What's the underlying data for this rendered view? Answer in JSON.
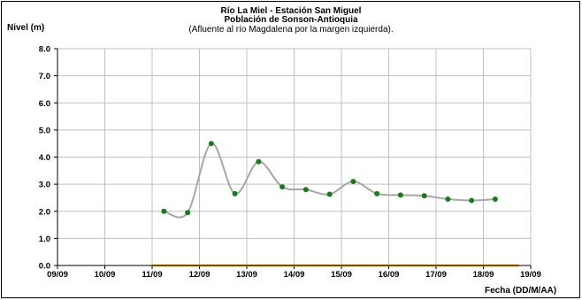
{
  "chart_data": {
    "type": "line",
    "title": "Río La Miel  - Estación San Miguel",
    "subtitle": "Población de Sonson-Antioquia",
    "note": "(Afluente al río Magdalena por la margen izquierda).",
    "ylabel": "Nivel (m)",
    "xlabel": "Fecha (DD/M/AA)",
    "ylim": [
      0,
      8
    ],
    "yticks": [
      "0.0",
      "1.0",
      "2.0",
      "3.0",
      "4.0",
      "5.0",
      "6.0",
      "7.0",
      "8.0"
    ],
    "xticks": [
      "09/09",
      "10/09",
      "11/09",
      "12/09",
      "13/09",
      "14/09",
      "15/09",
      "16/09",
      "17/09",
      "18/09",
      "19/09"
    ],
    "grid": true,
    "series": [
      {
        "color": "#a6a6a6",
        "marker_color": "#1a7a1a",
        "x": [
          "11/09 06:00",
          "11/09 18:00",
          "12/09 06:00",
          "12/09 18:00",
          "13/09 06:00",
          "13/09 18:00",
          "14/09 06:00",
          "14/09 18:00",
          "15/09 06:00",
          "15/09 18:00",
          "16/09 06:00",
          "16/09 18:00",
          "17/09 06:00",
          "17/09 18:00",
          "18/09 06:00"
        ],
        "values": [
          2.0,
          1.95,
          4.5,
          2.65,
          3.83,
          2.9,
          2.8,
          2.63,
          3.1,
          2.65,
          2.6,
          2.57,
          2.45,
          2.4,
          2.45
        ]
      },
      {
        "color": "#e6a400",
        "x": [
          "11/09 00:00",
          "18/09 18:00"
        ],
        "values": [
          0.0,
          0.0
        ]
      }
    ]
  }
}
